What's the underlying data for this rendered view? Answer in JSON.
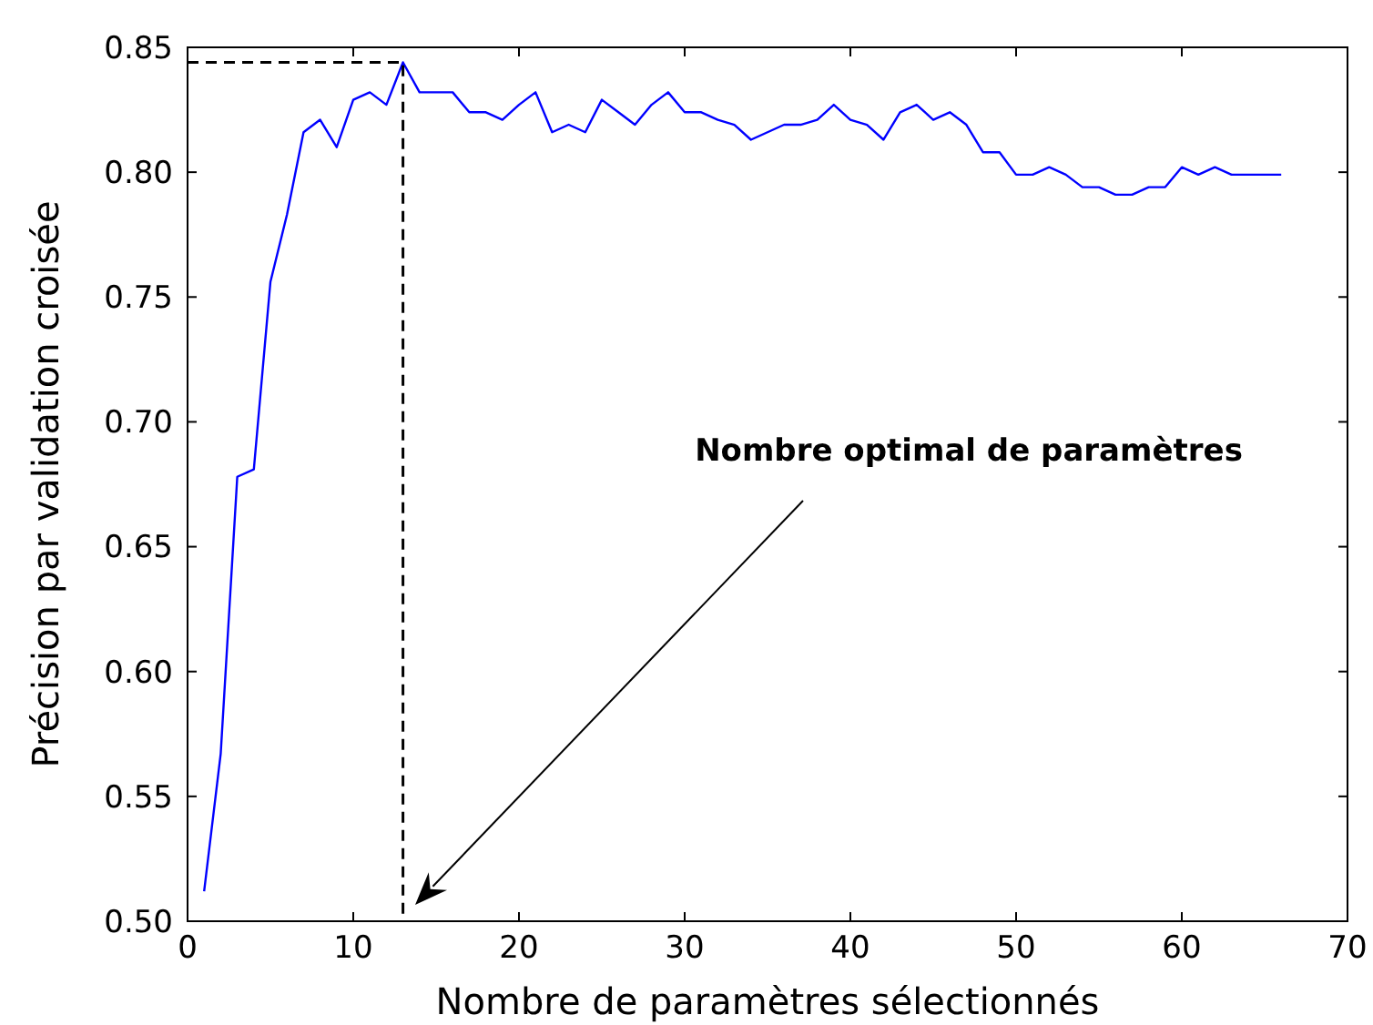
{
  "chart_data": {
    "type": "line",
    "xlabel": "Nombre de paramètres sélectionnés",
    "ylabel": "Précision par validation croisée",
    "xlim": [
      0,
      70
    ],
    "ylim": [
      0.5,
      0.85
    ],
    "xticks": [
      0,
      10,
      20,
      30,
      40,
      50,
      60,
      70
    ],
    "yticks": [
      {
        "value": 0.5,
        "label": "0.50"
      },
      {
        "value": 0.55,
        "label": "0.55"
      },
      {
        "value": 0.6,
        "label": "0.60"
      },
      {
        "value": 0.65,
        "label": "0.65"
      },
      {
        "value": 0.7,
        "label": "0.70"
      },
      {
        "value": 0.75,
        "label": "0.75"
      },
      {
        "value": 0.8,
        "label": "0.80"
      },
      {
        "value": 0.85,
        "label": "0.85"
      }
    ],
    "grid": false,
    "marker": "none",
    "series": [
      {
        "color": "#0000ff",
        "line_style": "solid",
        "x": [
          1,
          2,
          3,
          4,
          5,
          6,
          7,
          8,
          9,
          10,
          11,
          12,
          13,
          14,
          15,
          16,
          17,
          18,
          19,
          20,
          21,
          22,
          23,
          24,
          25,
          26,
          27,
          28,
          29,
          30,
          31,
          32,
          33,
          34,
          35,
          36,
          37,
          38,
          39,
          40,
          41,
          42,
          43,
          44,
          45,
          46,
          47,
          48,
          49,
          50,
          51,
          52,
          53,
          54,
          55,
          56,
          57,
          58,
          59,
          60,
          61,
          62,
          63,
          64,
          65,
          66
        ],
        "values": [
          0.512,
          0.567,
          0.678,
          0.681,
          0.756,
          0.783,
          0.816,
          0.821,
          0.81,
          0.829,
          0.832,
          0.827,
          0.844,
          0.832,
          0.832,
          0.832,
          0.824,
          0.824,
          0.821,
          0.827,
          0.832,
          0.816,
          0.819,
          0.816,
          0.829,
          0.824,
          0.819,
          0.827,
          0.832,
          0.824,
          0.824,
          0.821,
          0.819,
          0.813,
          0.816,
          0.819,
          0.819,
          0.821,
          0.827,
          0.821,
          0.819,
          0.813,
          0.824,
          0.827,
          0.821,
          0.824,
          0.819,
          0.808,
          0.808,
          0.799,
          0.799,
          0.802,
          0.799,
          0.794,
          0.794,
          0.791,
          0.791,
          0.794,
          0.794,
          0.802,
          0.799,
          0.802,
          0.799,
          0.799,
          0.799,
          0.799
        ]
      },
      {
        "color": "#000000",
        "line_style": "dashed",
        "x": [
          0,
          13,
          13
        ],
        "values": [
          0.844,
          0.844,
          0.5
        ]
      }
    ],
    "annotations": [
      "Nombre optimal de paramètres"
    ]
  }
}
